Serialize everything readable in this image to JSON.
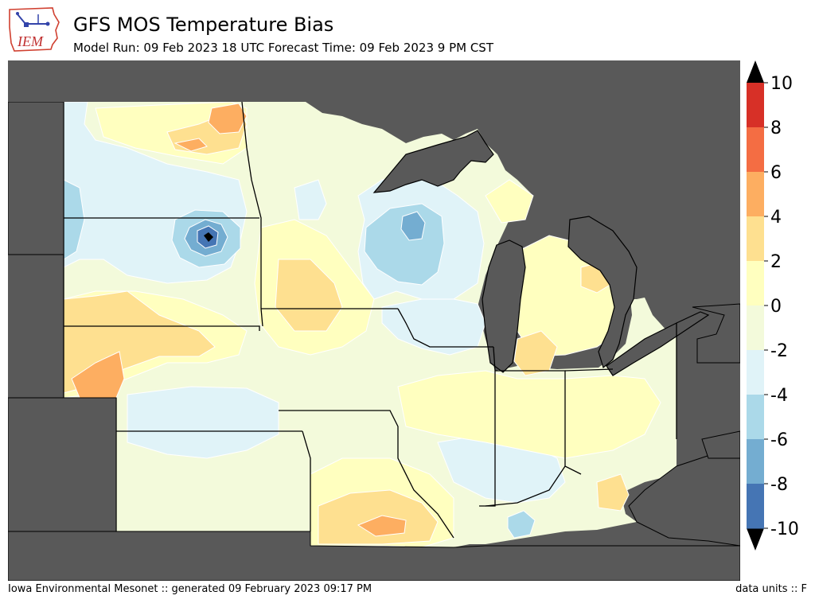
{
  "header": {
    "logo_text": "IEM",
    "title": "GFS MOS Temperature Bias",
    "subtitle": "Model Run: 09 Feb 2023 18 UTC Forecast Time: 09 Feb 2023 9 PM CST"
  },
  "colorbar": {
    "levels": [
      {
        "label": "10",
        "color": "#d73027"
      },
      {
        "label": "8",
        "color": "#f46d43"
      },
      {
        "label": "6",
        "color": "#fdae61"
      },
      {
        "label": "4",
        "color": "#fee090"
      },
      {
        "label": "2",
        "color": "#ffffbf"
      },
      {
        "label": "0",
        "color": "#f3fadb"
      },
      {
        "label": "-2",
        "color": "#e0f3f8"
      },
      {
        "label": "-4",
        "color": "#abd9e9"
      },
      {
        "label": "-6",
        "color": "#74add1"
      },
      {
        "label": "-8",
        "color": "#4575b4"
      },
      {
        "label": "-10",
        "color": "#313695"
      }
    ],
    "over_color": "#000000",
    "under_color": "#000000"
  },
  "map": {
    "region": "Upper Midwest / Great Lakes",
    "masked_color": "#595959",
    "border_color": "#000000",
    "contour_color": "#ffffff"
  },
  "footer": {
    "left": "Iowa Environmental Mesonet :: generated 09 February 2023 09:17 PM",
    "right": "data units :: F"
  }
}
